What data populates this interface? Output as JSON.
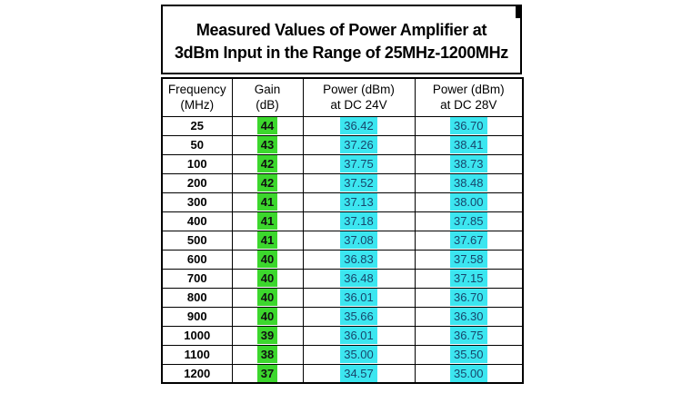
{
  "title": {
    "line1": "Measured Values of Power Amplifier at",
    "line2": "3dBm Input in the Range of 25MHz-1200MHz"
  },
  "table": {
    "headers": [
      {
        "line1": "Frequency",
        "line2": "(MHz)"
      },
      {
        "line1": "Gain",
        "line2": "(dB)"
      },
      {
        "line1": "Power (dBm)",
        "line2": "at DC 24V"
      },
      {
        "line1": "Power (dBm)",
        "line2": "at DC 28V"
      }
    ],
    "rows": [
      {
        "freq": "25",
        "gain": "44",
        "p24": "36.42",
        "p28": "36.70"
      },
      {
        "freq": "50",
        "gain": "43",
        "p24": "37.26",
        "p28": "38.41"
      },
      {
        "freq": "100",
        "gain": "42",
        "p24": "37.75",
        "p28": "38.73"
      },
      {
        "freq": "200",
        "gain": "42",
        "p24": "37.52",
        "p28": "38.48"
      },
      {
        "freq": "300",
        "gain": "41",
        "p24": "37.13",
        "p28": "38.00"
      },
      {
        "freq": "400",
        "gain": "41",
        "p24": "37.18",
        "p28": "37.85"
      },
      {
        "freq": "500",
        "gain": "41",
        "p24": "37.08",
        "p28": "37.67"
      },
      {
        "freq": "600",
        "gain": "40",
        "p24": "36.83",
        "p28": "37.58"
      },
      {
        "freq": "700",
        "gain": "40",
        "p24": "36.48",
        "p28": "37.15"
      },
      {
        "freq": "800",
        "gain": "40",
        "p24": "36.01",
        "p28": "36.70"
      },
      {
        "freq": "900",
        "gain": "40",
        "p24": "35.66",
        "p28": "36.30"
      },
      {
        "freq": "1000",
        "gain": "39",
        "p24": "36.01",
        "p28": "36.75"
      },
      {
        "freq": "1100",
        "gain": "38",
        "p24": "35.00",
        "p28": "35.50"
      },
      {
        "freq": "1200",
        "gain": "37",
        "p24": "34.57",
        "p28": "35.00"
      }
    ]
  },
  "colors": {
    "gain_highlight": "#3cd72d",
    "power_highlight": "#3ce6f0",
    "border": "#000000",
    "background": "#ffffff",
    "power_text": "#17456b",
    "gain_text": "#111111"
  },
  "chart_data": {
    "type": "table",
    "title": "Measured Values of Power Amplifier at 3dBm Input in the Range of 25MHz-1200MHz",
    "columns": [
      "Frequency (MHz)",
      "Gain (dB)",
      "Power (dBm) at DC 24V",
      "Power (dBm) at DC 28V"
    ],
    "rows": [
      [
        25,
        44,
        36.42,
        36.7
      ],
      [
        50,
        43,
        37.26,
        38.41
      ],
      [
        100,
        42,
        37.75,
        38.73
      ],
      [
        200,
        42,
        37.52,
        38.48
      ],
      [
        300,
        41,
        37.13,
        38.0
      ],
      [
        400,
        41,
        37.18,
        37.85
      ],
      [
        500,
        41,
        37.08,
        37.67
      ],
      [
        600,
        40,
        36.83,
        37.58
      ],
      [
        700,
        40,
        36.48,
        37.15
      ],
      [
        800,
        40,
        36.01,
        36.7
      ],
      [
        900,
        40,
        35.66,
        36.3
      ],
      [
        1000,
        39,
        36.01,
        36.75
      ],
      [
        1100,
        38,
        35.0,
        35.5
      ],
      [
        1200,
        37,
        34.57,
        35.0
      ]
    ]
  }
}
